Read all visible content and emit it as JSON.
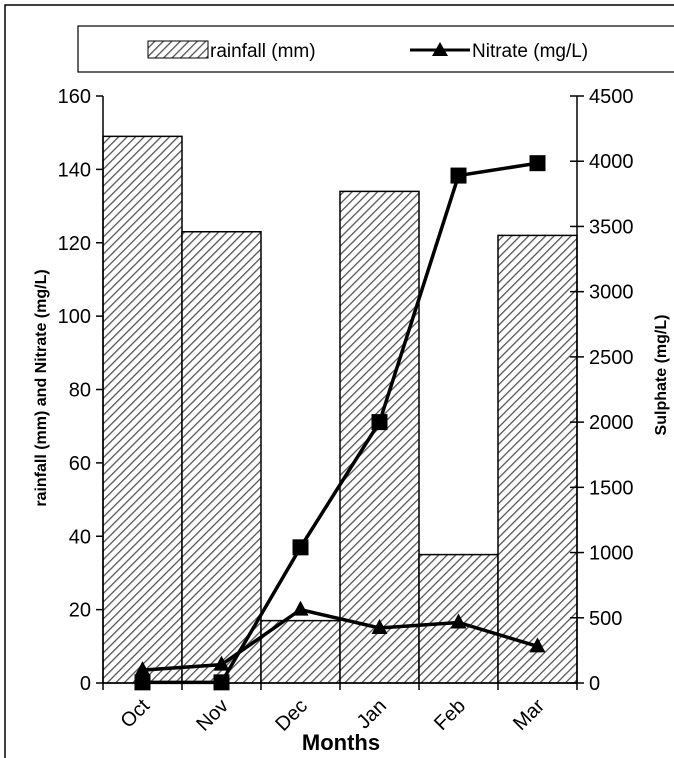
{
  "chart_data": {
    "type": "bar",
    "xlabel": "Months",
    "ylabel": "rainfall (mm) and Nitrate (mg/L)",
    "y2label": "Sulphate (mg/L)",
    "categories": [
      "Oct",
      "Nov",
      "Dec",
      "Jan",
      "Feb",
      "Mar"
    ],
    "ylim": [
      0,
      160
    ],
    "y2lim": [
      0,
      4500
    ],
    "yticks": [
      0,
      20,
      40,
      60,
      80,
      100,
      120,
      140,
      160
    ],
    "y2ticks": [
      0,
      500,
      1000,
      1500,
      2000,
      2500,
      3000,
      3500,
      4000,
      4500
    ],
    "legend_position": "top",
    "grid": false,
    "series": [
      {
        "name": "rainfall (mm)",
        "kind": "bar",
        "axis": "left",
        "pattern": "diagonal-hatch",
        "values": [
          149,
          123,
          17,
          134,
          35,
          122
        ]
      },
      {
        "name": "Nitrate (mg/L)",
        "kind": "line",
        "axis": "left",
        "marker": "triangle",
        "values": [
          3.5,
          5,
          20,
          15,
          16.5,
          10
        ]
      },
      {
        "name": "",
        "kind": "line",
        "axis": "right",
        "marker": "square",
        "values": [
          5,
          5,
          1040,
          2000,
          3890,
          3985
        ]
      }
    ]
  }
}
